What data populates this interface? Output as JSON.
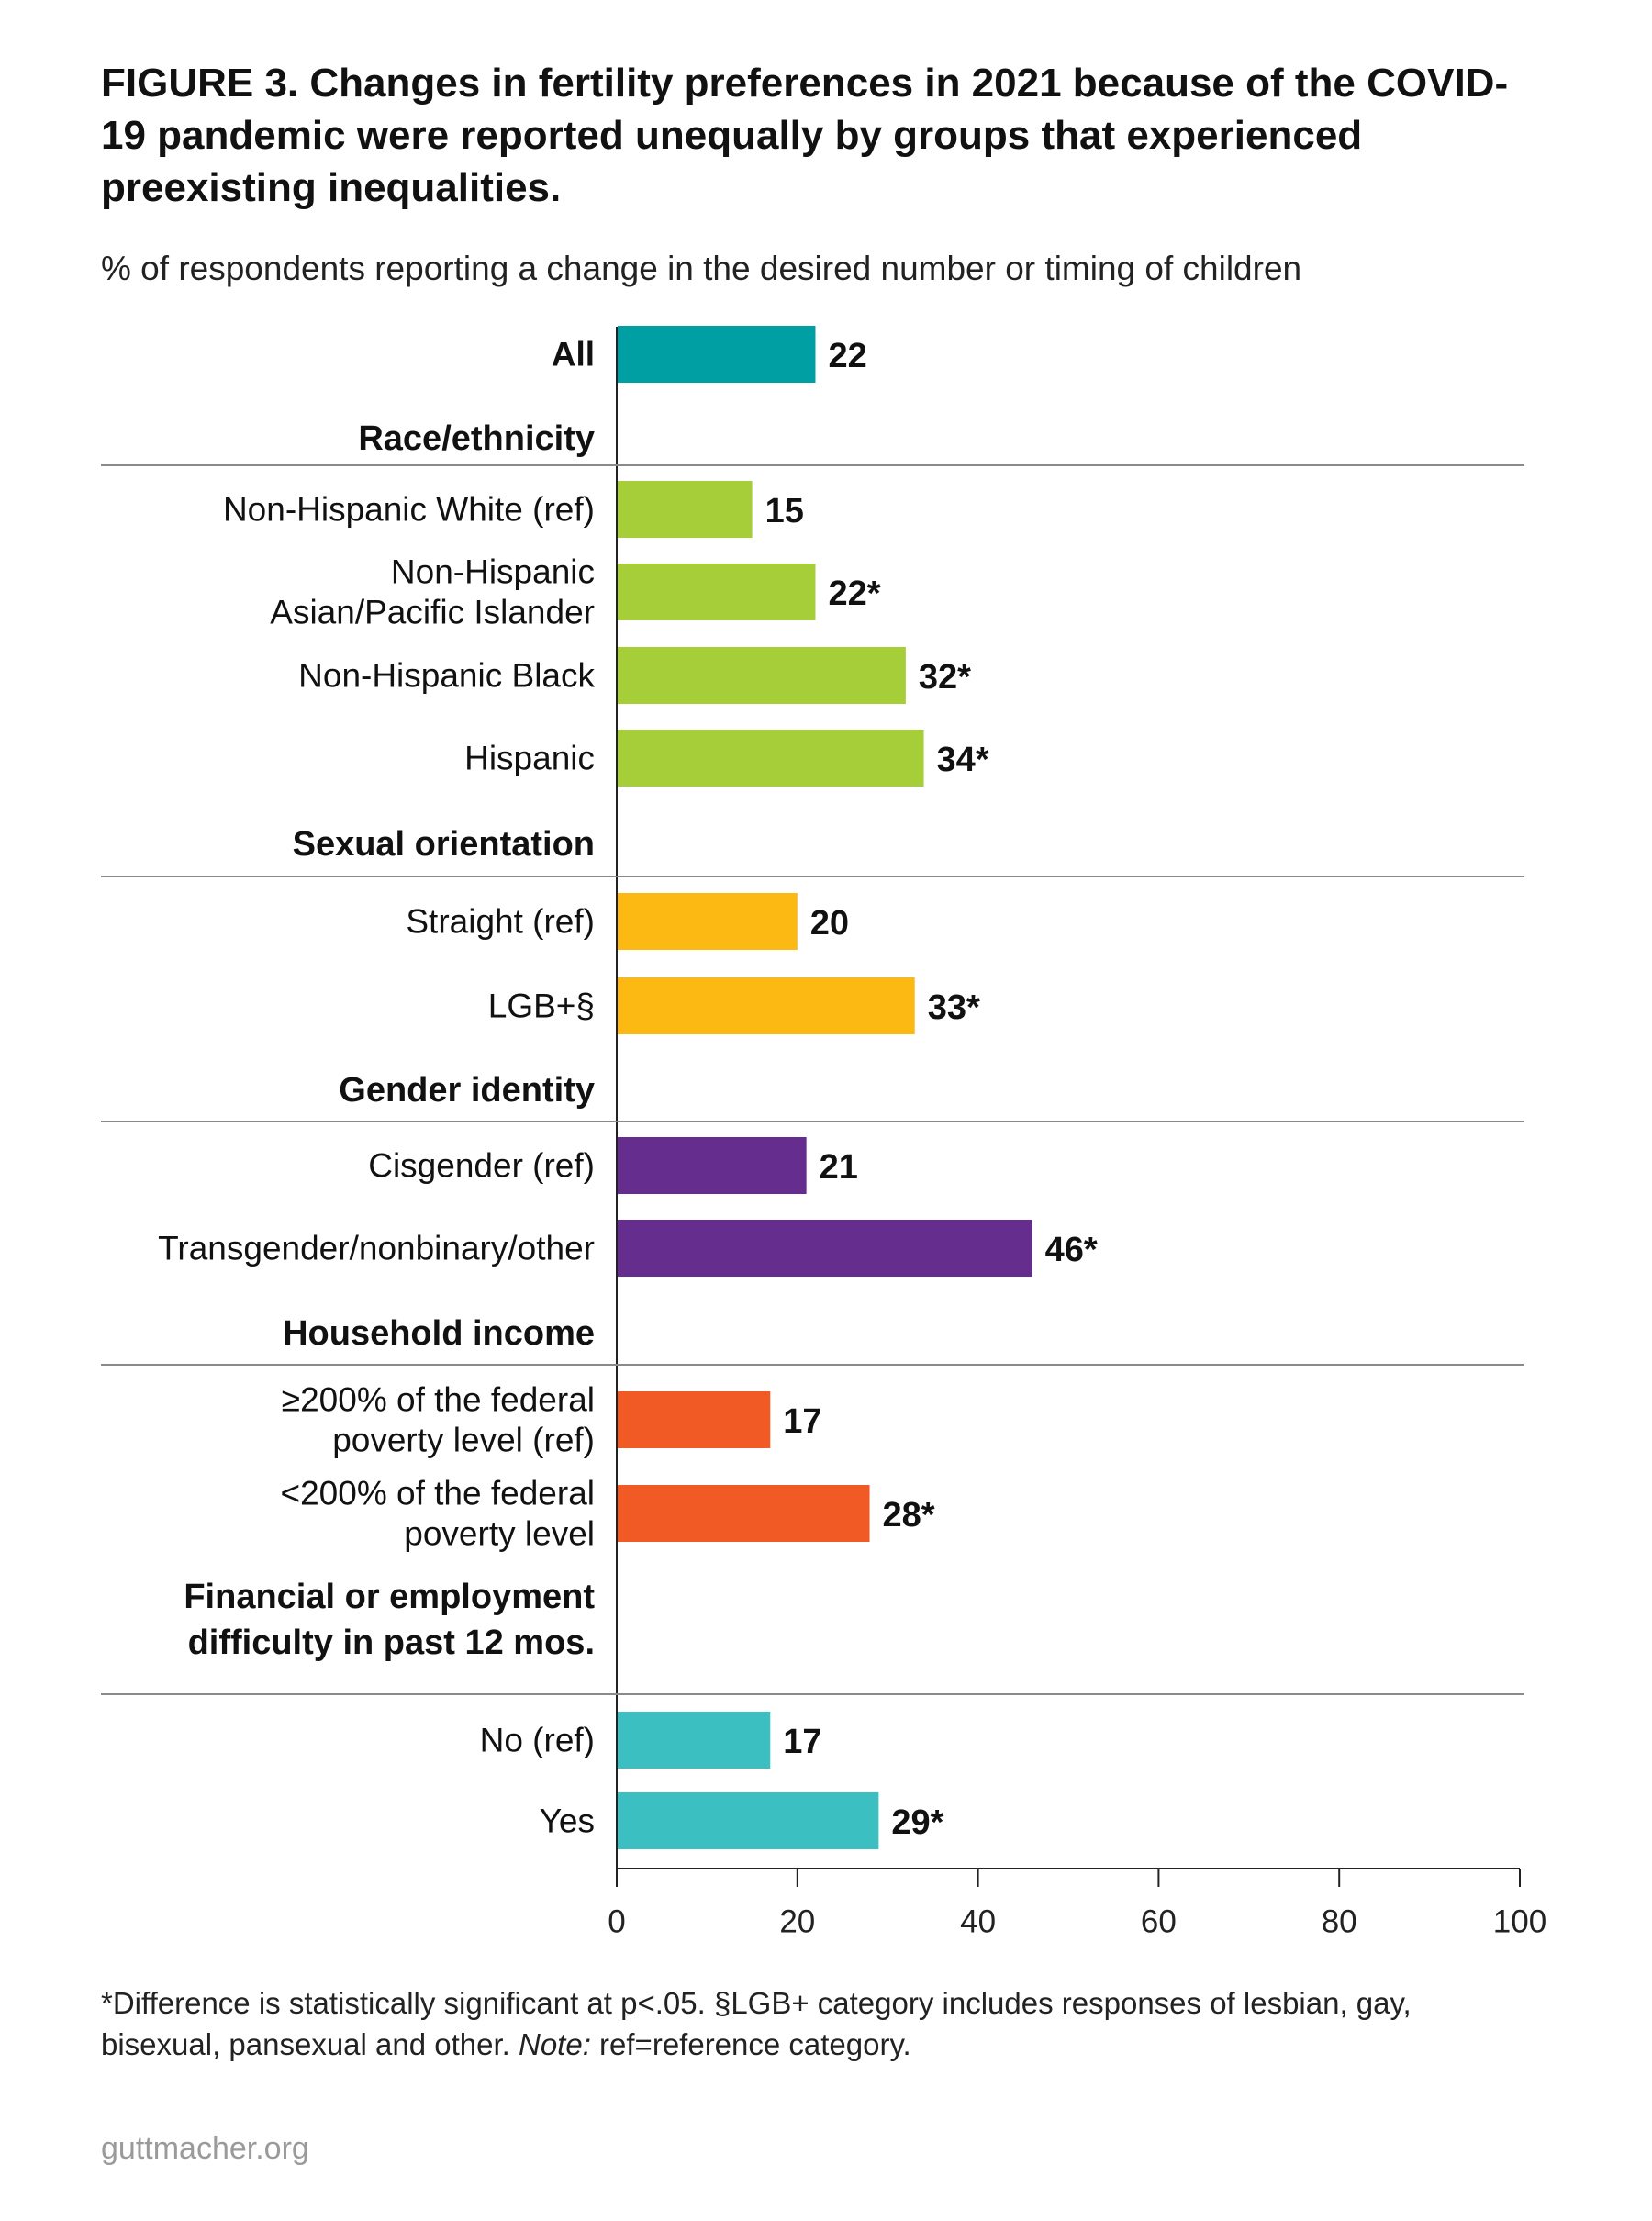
{
  "header": {
    "title": "FIGURE 3. Changes in fertility preferences in 2021 because of the COVID-19 pandemic were reported unequally by groups that experienced preexisting inequalities.",
    "subtitle": "% of respondents reporting a change in the desired number or timing of children"
  },
  "chart_data": {
    "type": "bar",
    "orientation": "horizontal",
    "xlim": [
      0,
      100
    ],
    "x_ticks": [
      "0",
      "20",
      "40",
      "60",
      "80",
      "100"
    ],
    "grid": false,
    "groups": [
      {
        "heading": "",
        "color": "#009fa4",
        "bars": [
          {
            "label": [
              "All"
            ],
            "value": 22,
            "value_label": "22",
            "bold_label": true
          }
        ]
      },
      {
        "heading": [
          "Race/ethnicity"
        ],
        "color": "#a6ce39",
        "bars": [
          {
            "label": [
              "Non-Hispanic White (ref)"
            ],
            "value": 15,
            "value_label": "15"
          },
          {
            "label": [
              "Non-Hispanic",
              "Asian/Pacific Islander"
            ],
            "value": 22,
            "value_label": "22*"
          },
          {
            "label": [
              "Non-Hispanic Black"
            ],
            "value": 32,
            "value_label": "32*"
          },
          {
            "label": [
              "Hispanic"
            ],
            "value": 34,
            "value_label": "34*"
          }
        ]
      },
      {
        "heading": [
          "Sexual orientation"
        ],
        "color": "#fdb913",
        "bars": [
          {
            "label": [
              "Straight (ref)"
            ],
            "value": 20,
            "value_label": "20"
          },
          {
            "label": [
              "LGB+§"
            ],
            "value": 33,
            "value_label": "33*"
          }
        ]
      },
      {
        "heading": [
          "Gender identity"
        ],
        "color": "#652d8e",
        "bars": [
          {
            "label": [
              "Cisgender (ref)"
            ],
            "value": 21,
            "value_label": "21"
          },
          {
            "label": [
              "Transgender/nonbinary/other"
            ],
            "value": 46,
            "value_label": "46*"
          }
        ]
      },
      {
        "heading": [
          "Household income"
        ],
        "color": "#f15a24",
        "bars": [
          {
            "label": [
              "≥200% of the federal",
              "poverty level (ref)"
            ],
            "value": 17,
            "value_label": "17"
          },
          {
            "label": [
              "<200% of the federal",
              "poverty level"
            ],
            "value": 28,
            "value_label": "28*"
          }
        ]
      },
      {
        "heading": [
          "Financial or employment",
          "difficulty in past 12 mos."
        ],
        "color": "#3bbfc0",
        "bars": [
          {
            "label": [
              "No (ref)"
            ],
            "value": 17,
            "value_label": "17"
          },
          {
            "label": [
              "Yes"
            ],
            "value": 29,
            "value_label": "29*"
          }
        ]
      }
    ]
  },
  "footnote": {
    "line1": "*Difference is statistically significant at p<.05. §LGB+ category includes responses of lesbian, gay,",
    "line2_pre": "bisexual, pansexual and other. ",
    "note_label": "Note:",
    "line2_post": " ref=reference category."
  },
  "source": "guttmacher.org"
}
